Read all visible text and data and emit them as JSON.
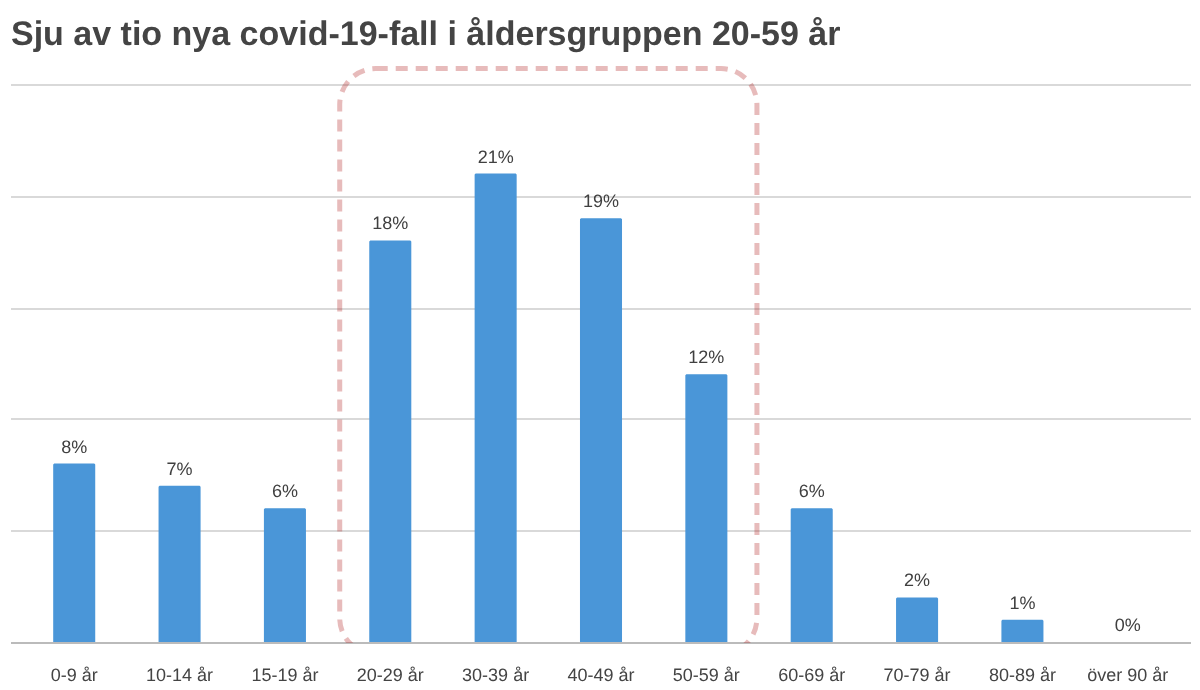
{
  "chart_data": {
    "type": "bar",
    "title": "Sju av tio nya covid-19-fall i åldersgruppen 20-59 år",
    "categories": [
      "0-9 år",
      "10-14 år",
      "15-19 år",
      "20-29 år",
      "30-39 år",
      "40-49 år",
      "50-59 år",
      "60-69 år",
      "70-79 år",
      "80-89 år",
      "över 90 år"
    ],
    "values": [
      8,
      7,
      6,
      18,
      21,
      19,
      12,
      6,
      2,
      1,
      0
    ],
    "value_labels": [
      "8%",
      "7%",
      "6%",
      "18%",
      "21%",
      "19%",
      "12%",
      "6%",
      "2%",
      "1%",
      "0%"
    ],
    "color": "#4a96d8",
    "ylim": [
      0,
      25
    ],
    "yticks": [
      {
        "value": 0,
        "label": null
      },
      {
        "value": 5,
        "label": null
      },
      {
        "value": 10,
        "label": null
      },
      {
        "value": 15,
        "label": null
      },
      {
        "value": 20,
        "label": null
      },
      {
        "value": 25,
        "label": null
      }
    ],
    "tick_labels": "x",
    "grid": "y"
  }
}
